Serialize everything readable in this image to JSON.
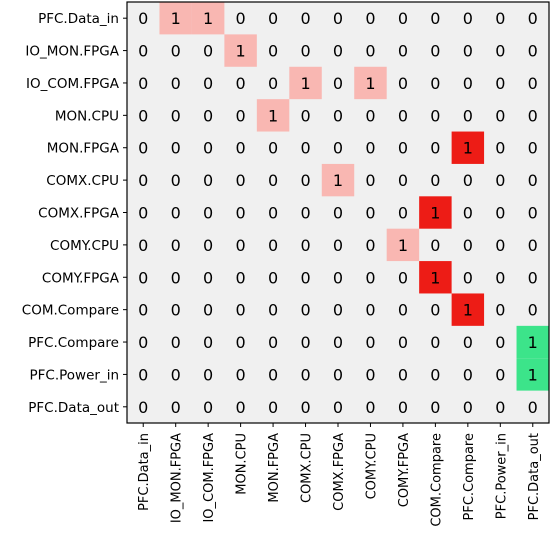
{
  "chart_data": {
    "type": "heatmap",
    "title": "",
    "xlabel": "",
    "ylabel": "",
    "row_labels": [
      "PFC.Data_in",
      "IO_MON.FPGA",
      "IO_COM.FPGA",
      "MON.CPU",
      "MON.FPGA",
      "COMX.CPU",
      "COMX.FPGA",
      "COMY.CPU",
      "COMY.FPGA",
      "COM.Compare",
      "PFC.Compare",
      "PFC.Power_in",
      "PFC.Data_out"
    ],
    "col_labels": [
      "PFC.Data_in",
      "IO_MON.FPGA",
      "IO_COM.FPGA",
      "MON.CPU",
      "MON.FPGA",
      "COMX.CPU",
      "COMX.FPGA",
      "COMY.CPU",
      "COMY.FPGA",
      "COM.Compare",
      "PFC.Compare",
      "PFC.Power_in",
      "PFC.Data_out"
    ],
    "values": [
      [
        0,
        1,
        1,
        0,
        0,
        0,
        0,
        0,
        0,
        0,
        0,
        0,
        0
      ],
      [
        0,
        0,
        0,
        1,
        0,
        0,
        0,
        0,
        0,
        0,
        0,
        0,
        0
      ],
      [
        0,
        0,
        0,
        0,
        0,
        1,
        0,
        1,
        0,
        0,
        0,
        0,
        0
      ],
      [
        0,
        0,
        0,
        0,
        1,
        0,
        0,
        0,
        0,
        0,
        0,
        0,
        0
      ],
      [
        0,
        0,
        0,
        0,
        0,
        0,
        0,
        0,
        0,
        0,
        1,
        0,
        0
      ],
      [
        0,
        0,
        0,
        0,
        0,
        0,
        1,
        0,
        0,
        0,
        0,
        0,
        0
      ],
      [
        0,
        0,
        0,
        0,
        0,
        0,
        0,
        0,
        0,
        1,
        0,
        0,
        0
      ],
      [
        0,
        0,
        0,
        0,
        0,
        0,
        0,
        0,
        1,
        0,
        0,
        0,
        0
      ],
      [
        0,
        0,
        0,
        0,
        0,
        0,
        0,
        0,
        0,
        1,
        0,
        0,
        0
      ],
      [
        0,
        0,
        0,
        0,
        0,
        0,
        0,
        0,
        0,
        0,
        1,
        0,
        0
      ],
      [
        0,
        0,
        0,
        0,
        0,
        0,
        0,
        0,
        0,
        0,
        0,
        0,
        1
      ],
      [
        0,
        0,
        0,
        0,
        0,
        0,
        0,
        0,
        0,
        0,
        0,
        0,
        1
      ],
      [
        0,
        0,
        0,
        0,
        0,
        0,
        0,
        0,
        0,
        0,
        0,
        0,
        0
      ]
    ],
    "cell_colors": [
      [
        "",
        "#f9b7b2",
        "#f9b7b2",
        "",
        "",
        "",
        "",
        "",
        "",
        "",
        "",
        "",
        ""
      ],
      [
        "",
        "",
        "",
        "#f9b7b2",
        "",
        "",
        "",
        "",
        "",
        "",
        "",
        "",
        ""
      ],
      [
        "",
        "",
        "",
        "",
        "",
        "#f9b7b2",
        "",
        "#f9b7b2",
        "",
        "",
        "",
        "",
        ""
      ],
      [
        "",
        "",
        "",
        "",
        "#f9b7b2",
        "",
        "",
        "",
        "",
        "",
        "",
        "",
        ""
      ],
      [
        "",
        "",
        "",
        "",
        "",
        "",
        "",
        "",
        "",
        "",
        "#ed1c16",
        "",
        ""
      ],
      [
        "",
        "",
        "",
        "",
        "",
        "",
        "#f9b7b2",
        "",
        "",
        "",
        "",
        "",
        ""
      ],
      [
        "",
        "",
        "",
        "",
        "",
        "",
        "",
        "",
        "",
        "#ed1c16",
        "",
        "",
        ""
      ],
      [
        "",
        "",
        "",
        "",
        "",
        "",
        "",
        "",
        "#f9b7b2",
        "",
        "",
        "",
        ""
      ],
      [
        "",
        "",
        "",
        "",
        "",
        "",
        "",
        "",
        "",
        "#ed1c16",
        "",
        "",
        ""
      ],
      [
        "",
        "",
        "",
        "",
        "",
        "",
        "",
        "",
        "",
        "",
        "#ed1c16",
        "",
        ""
      ],
      [
        "",
        "",
        "",
        "",
        "",
        "",
        "",
        "",
        "",
        "",
        "",
        "",
        "#3ce48a"
      ],
      [
        "",
        "",
        "",
        "",
        "",
        "",
        "",
        "",
        "",
        "",
        "",
        "",
        "#3ce48a"
      ],
      [
        "",
        "",
        "",
        "",
        "",
        "",
        "",
        "",
        "",
        "",
        "",
        "",
        ""
      ]
    ],
    "background_color": "#f0f0f0",
    "grid": false,
    "legend": "none"
  }
}
